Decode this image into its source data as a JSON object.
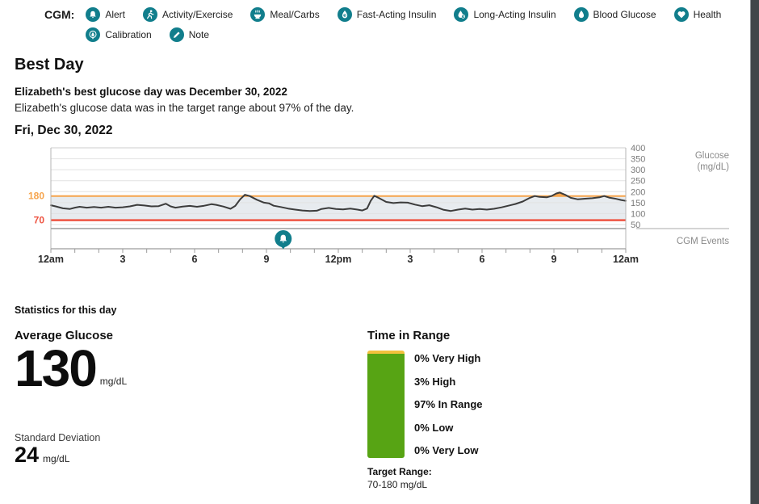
{
  "legend": {
    "label": "CGM:",
    "items": [
      {
        "label": "Alert",
        "icon": "bell"
      },
      {
        "label": "Activity/Exercise",
        "icon": "runner"
      },
      {
        "label": "Meal/Carbs",
        "icon": "meal"
      },
      {
        "label": "Fast-Acting Insulin",
        "icon": "fast-insulin"
      },
      {
        "label": "Long-Acting Insulin",
        "icon": "long-insulin"
      },
      {
        "label": "Blood Glucose",
        "icon": "droplet"
      },
      {
        "label": "Health",
        "icon": "heart"
      },
      {
        "label": "Calibration",
        "icon": "calibration"
      },
      {
        "label": "Note",
        "icon": "pencil"
      }
    ]
  },
  "page": {
    "title": "Best Day",
    "summary_bold": "Elizabeth's best glucose day was December 30, 2022",
    "summary": "Elizabeth's glucose data was in the target range about 97% of the day.",
    "day_heading": "Fri, Dec 30, 2022"
  },
  "colors": {
    "teal": "#117e8c",
    "orange": "#f6a44c",
    "red": "#ee5442",
    "band_fill": "#e7ebef",
    "trace": "#3c3c3c",
    "grid": "#e2e2e2",
    "axis_text": "#7a7a7a",
    "green": "#57a414",
    "yellow": "#f3c13d"
  },
  "chart_data": {
    "type": "line",
    "title": "Fri, Dec 30, 2022",
    "ylabel_line1": "Glucose",
    "ylabel_line2": "(mg/dL)",
    "events_label": "CGM Events",
    "ylim": [
      50,
      400
    ],
    "yticks": [
      400,
      350,
      300,
      250,
      200,
      150,
      100,
      50
    ],
    "xtick_labels": [
      "12am",
      "3",
      "6",
      "9",
      "12pm",
      "3",
      "6",
      "9",
      "12am"
    ],
    "xtick_hours": [
      0,
      3,
      6,
      9,
      12,
      15,
      18,
      21,
      24
    ],
    "x_range_hours": [
      0,
      24
    ],
    "grid": true,
    "target_range": {
      "low": 70,
      "high": 180,
      "low_label": "70",
      "high_label": "180"
    },
    "events": [
      {
        "type": "alert",
        "hour": 9.7,
        "icon": "bell"
      }
    ],
    "series": [
      {
        "name": "glucose-trace",
        "points": [
          [
            0,
            138
          ],
          [
            0.2,
            133
          ],
          [
            0.5,
            124
          ],
          [
            0.8,
            121
          ],
          [
            1.0,
            127
          ],
          [
            1.2,
            131
          ],
          [
            1.5,
            127
          ],
          [
            1.8,
            130
          ],
          [
            2.1,
            127
          ],
          [
            2.4,
            131
          ],
          [
            2.7,
            127
          ],
          [
            3.0,
            129
          ],
          [
            3.3,
            133
          ],
          [
            3.6,
            140
          ],
          [
            3.9,
            137
          ],
          [
            4.2,
            133
          ],
          [
            4.5,
            134
          ],
          [
            4.8,
            145
          ],
          [
            5.0,
            133
          ],
          [
            5.2,
            127
          ],
          [
            5.5,
            132
          ],
          [
            5.8,
            135
          ],
          [
            6.1,
            131
          ],
          [
            6.4,
            136
          ],
          [
            6.7,
            143
          ],
          [
            6.9,
            140
          ],
          [
            7.2,
            132
          ],
          [
            7.5,
            122
          ],
          [
            7.7,
            135
          ],
          [
            7.9,
            165
          ],
          [
            8.1,
            186
          ],
          [
            8.3,
            180
          ],
          [
            8.6,
            163
          ],
          [
            8.9,
            150
          ],
          [
            9.1,
            147
          ],
          [
            9.3,
            136
          ],
          [
            9.6,
            130
          ],
          [
            9.9,
            123
          ],
          [
            10.2,
            118
          ],
          [
            10.5,
            114
          ],
          [
            10.8,
            112
          ],
          [
            11.1,
            113
          ],
          [
            11.3,
            121
          ],
          [
            11.6,
            126
          ],
          [
            11.9,
            121
          ],
          [
            12.2,
            119
          ],
          [
            12.5,
            123
          ],
          [
            12.8,
            118
          ],
          [
            13.0,
            114
          ],
          [
            13.2,
            123
          ],
          [
            13.35,
            158
          ],
          [
            13.5,
            181
          ],
          [
            13.7,
            171
          ],
          [
            14.0,
            153
          ],
          [
            14.3,
            148
          ],
          [
            14.6,
            151
          ],
          [
            14.9,
            150
          ],
          [
            15.2,
            141
          ],
          [
            15.5,
            134
          ],
          [
            15.8,
            138
          ],
          [
            16.1,
            129
          ],
          [
            16.4,
            117
          ],
          [
            16.7,
            112
          ],
          [
            17.0,
            118
          ],
          [
            17.3,
            123
          ],
          [
            17.6,
            118
          ],
          [
            17.9,
            121
          ],
          [
            18.2,
            118
          ],
          [
            18.5,
            122
          ],
          [
            18.8,
            128
          ],
          [
            19.1,
            136
          ],
          [
            19.4,
            144
          ],
          [
            19.7,
            155
          ],
          [
            20.0,
            172
          ],
          [
            20.2,
            180
          ],
          [
            20.4,
            176
          ],
          [
            20.7,
            174
          ],
          [
            20.9,
            180
          ],
          [
            21.1,
            192
          ],
          [
            21.25,
            196
          ],
          [
            21.5,
            184
          ],
          [
            21.7,
            172
          ],
          [
            22.0,
            165
          ],
          [
            22.3,
            168
          ],
          [
            22.6,
            170
          ],
          [
            22.9,
            174
          ],
          [
            23.1,
            180
          ],
          [
            23.3,
            173
          ],
          [
            23.6,
            167
          ],
          [
            23.8,
            162
          ],
          [
            24,
            158
          ]
        ]
      }
    ]
  },
  "stats": {
    "heading": "Statistics for this day",
    "avg_label": "Average Glucose",
    "avg_value": "130",
    "avg_unit": "mg/dL",
    "sd_label": "Standard Deviation",
    "sd_value": "24",
    "sd_unit": "mg/dL"
  },
  "tir": {
    "heading": "Time in Range",
    "rows": [
      {
        "text": "0% Very High"
      },
      {
        "text": "3% High"
      },
      {
        "text": "97% In Range"
      },
      {
        "text": "0% Low"
      },
      {
        "text": "0% Very Low"
      }
    ],
    "segments": [
      {
        "name": "very-high",
        "pct": 0,
        "color": "#f6a44c"
      },
      {
        "name": "high",
        "pct": 3,
        "color": "#f3c13d"
      },
      {
        "name": "in-range",
        "pct": 97,
        "color": "#57a414"
      },
      {
        "name": "low",
        "pct": 0,
        "color": "#ee5442"
      },
      {
        "name": "very-low",
        "pct": 0,
        "color": "#c0392b"
      }
    ],
    "target_label": "Target Range:",
    "target_value": "70-180 mg/dL"
  }
}
